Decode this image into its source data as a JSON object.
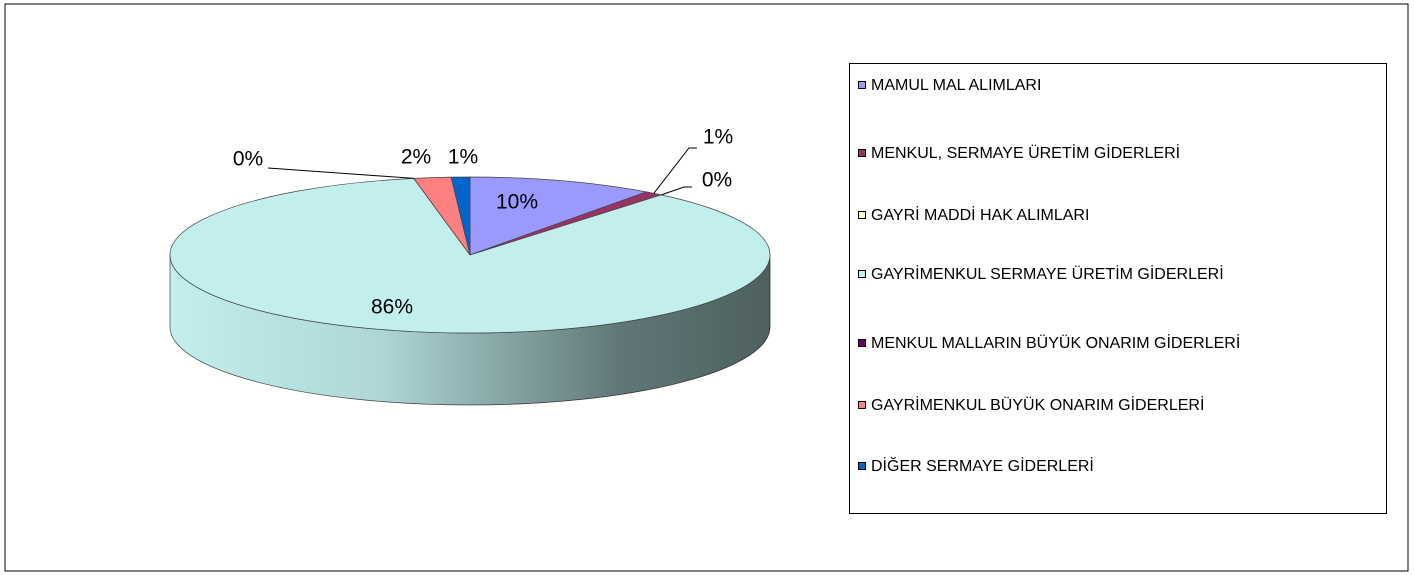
{
  "chart_data": {
    "type": "pie3d",
    "categories": [
      "MAMUL MAL ALIMLARI",
      "MENKUL, SERMAYE ÜRETİM GİDERLERİ",
      "GAYRİ MADDİ HAK ALIMLARI",
      "GAYRİMENKUL SERMAYE ÜRETİM GİDERLERİ",
      "MENKUL MALLARIN BÜYÜK ONARIM GİDERLERİ",
      "GAYRİMENKUL BÜYÜK ONARIM GİDERLERİ",
      "DİĞER SERMAYE GİDERLERİ"
    ],
    "values": [
      10,
      1,
      0,
      86,
      0,
      2,
      1
    ],
    "value_labels": [
      "10%",
      "1%",
      "0%",
      "86%",
      "0%",
      "2%",
      "1%"
    ],
    "colors": [
      "#9999ff",
      "#993366",
      "#ffffcc",
      "#c2eeee",
      "#660066",
      "#ff8080",
      "#0066cc"
    ],
    "legend": "right"
  }
}
